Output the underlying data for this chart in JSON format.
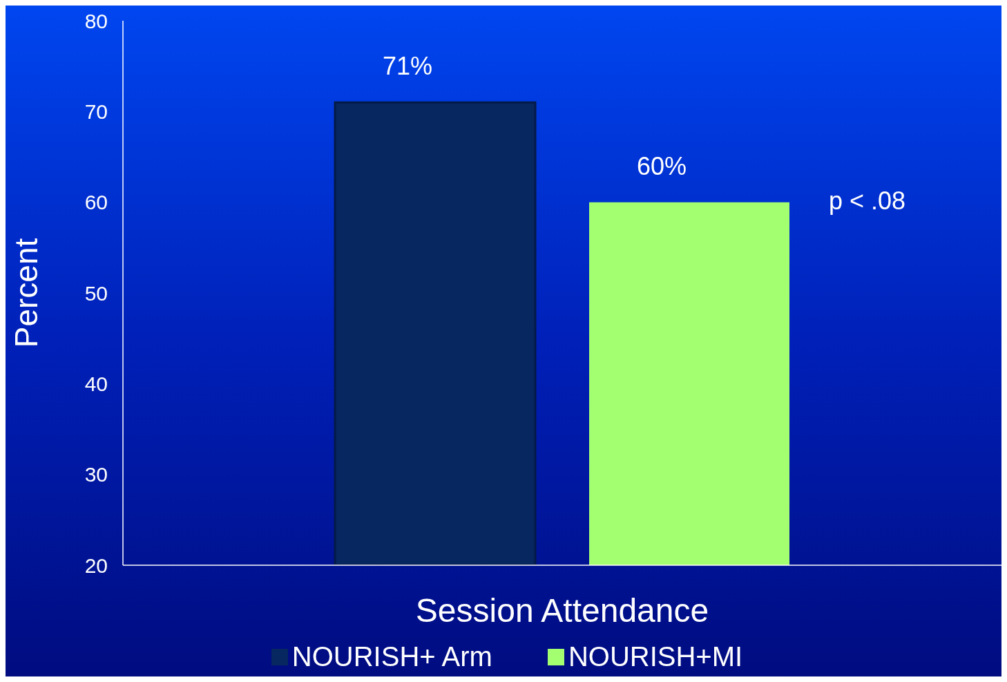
{
  "chart_data": {
    "type": "bar",
    "ylabel": "Percent",
    "categories": [
      "Session Attendance"
    ],
    "series": [
      {
        "name": "NOURISH+ Arm",
        "color": "#06275f",
        "values": [
          71
        ],
        "value_labels": [
          "71%"
        ]
      },
      {
        "name": "NOURISH+MI",
        "color": "#a3ff6f",
        "values": [
          60
        ],
        "value_labels": [
          "60%"
        ]
      }
    ],
    "ylim": [
      20,
      80
    ],
    "yticks": [
      20,
      30,
      40,
      50,
      60,
      70,
      80
    ],
    "legend": "bottom",
    "grid": false,
    "annotations": [
      "p < .08"
    ]
  }
}
